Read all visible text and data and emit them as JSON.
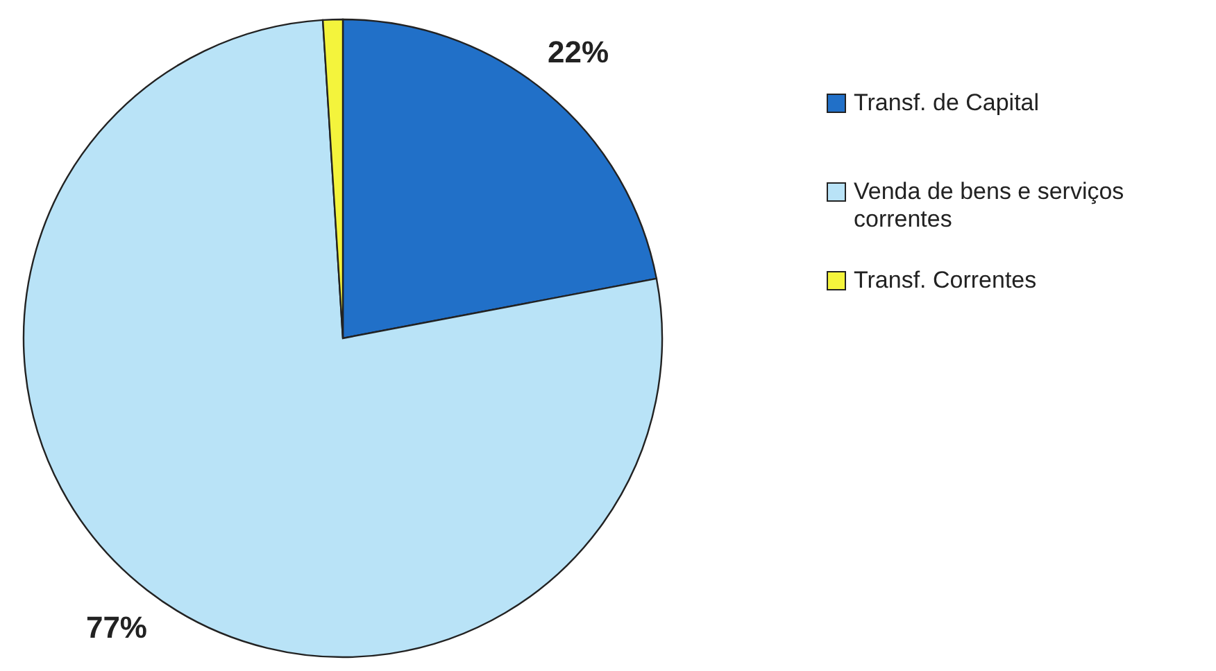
{
  "chart_data": {
    "type": "pie",
    "categories": [
      "Transf. de Capital",
      "Venda de bens e serviços correntes",
      "Transf. Correntes"
    ],
    "values": [
      22,
      77,
      1
    ],
    "colors": [
      "#2170c8",
      "#b9e3f7",
      "#f4f43c"
    ],
    "value_labels": [
      "22%",
      "77%",
      null
    ],
    "legend": "right"
  }
}
